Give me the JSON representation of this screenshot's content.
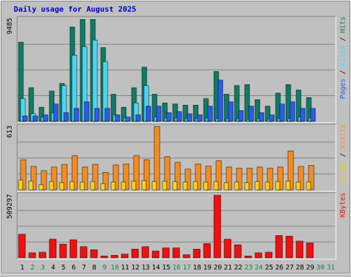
{
  "chart_data": {
    "type": "bar",
    "title": "Daily usage for August 2025",
    "days": [
      "1",
      "2",
      "3",
      "4",
      "5",
      "6",
      "7",
      "8",
      "9",
      "10",
      "11",
      "12",
      "13",
      "14",
      "15",
      "16",
      "17",
      "18",
      "19",
      "20",
      "21",
      "22",
      "23",
      "24",
      "25",
      "26",
      "27",
      "28",
      "29",
      "30",
      "31"
    ],
    "weekend_days": [
      "2",
      "3",
      "9",
      "10",
      "16",
      "17",
      "23",
      "24",
      "30",
      "31"
    ],
    "panels": [
      {
        "id": "pages-files-hits",
        "scale_max_label": "9485",
        "ylim": [
          0,
          9485
        ],
        "legend": [
          "Pages",
          "Files",
          "Hits"
        ],
        "series": [
          {
            "name": "Hits",
            "color": "#0e7d66",
            "values": [
              7300,
              3100,
              1300,
              2800,
              3500,
              8700,
              9400,
              9400,
              6800,
              2500,
              1300,
              3100,
              5000,
              2500,
              1700,
              1600,
              1500,
              1500,
              2100,
              4600,
              2500,
              3300,
              3400,
              2000,
              1400,
              2600,
              3400,
              2900,
              2200,
              0,
              0
            ]
          },
          {
            "name": "Files",
            "color": "#48d6f4",
            "values": [
              2100,
              700,
              400,
              800,
              3300,
              6100,
              6900,
              7500,
              5500,
              600,
              300,
              1700,
              3300,
              400,
              300,
              300,
              250,
              250,
              300,
              250,
              250,
              250,
              200,
              250,
              200,
              250,
              250,
              400,
              300,
              0,
              0
            ]
          },
          {
            "name": "Pages",
            "color": "#2b5ce6",
            "values": [
              500,
              500,
              600,
              1600,
              800,
              1200,
              1800,
              1200,
              1200,
              600,
              400,
              600,
              1400,
              1400,
              800,
              900,
              700,
              600,
              1400,
              3800,
              1800,
              1000,
              1400,
              800,
              600,
              1600,
              1800,
              1200,
              1200,
              0,
              0
            ]
          }
        ]
      },
      {
        "id": "visits-sites",
        "scale_max_label": "613",
        "ylim": [
          0,
          613
        ],
        "legend": [
          "Sites",
          "Visits"
        ],
        "series": [
          {
            "name": "Visits",
            "color": "#f48c22",
            "values": [
              290,
              225,
              185,
              220,
              245,
              330,
              220,
              245,
              170,
              240,
              250,
              330,
              290,
              610,
              320,
              265,
              200,
              250,
              230,
              280,
              220,
              210,
              210,
              220,
              210,
              220,
              375,
              225,
              235,
              0,
              0
            ]
          },
          {
            "name": "Sites",
            "color": "#f6d616",
            "values": [
              95,
              85,
              50,
              80,
              70,
              80,
              75,
              80,
              60,
              75,
              75,
              85,
              90,
              80,
              85,
              80,
              75,
              80,
              75,
              80,
              70,
              75,
              70,
              80,
              75,
              80,
              85,
              75,
              75,
              0,
              0
            ]
          }
        ]
      },
      {
        "id": "kbytes",
        "scale_max_label": "509297",
        "ylim": [
          0,
          509297
        ],
        "legend": [
          "KBytes"
        ],
        "series": [
          {
            "name": "KBytes",
            "color": "#ee1111",
            "values": [
              190000,
              40000,
              45000,
              150000,
              110000,
              145000,
              90000,
              65000,
              15000,
              20000,
              30000,
              70000,
              90000,
              55000,
              80000,
              80000,
              25000,
              70000,
              115000,
              505000,
              150000,
              105000,
              15000,
              40000,
              45000,
              180000,
              175000,
              135000,
              120000,
              0,
              0
            ]
          }
        ]
      }
    ]
  },
  "colors": {
    "title": "#0000c8",
    "weekday_label": "#000000",
    "weekend_label": "#0e8a40",
    "panel_fill": "#c0c0c0",
    "grid": "#808080"
  }
}
